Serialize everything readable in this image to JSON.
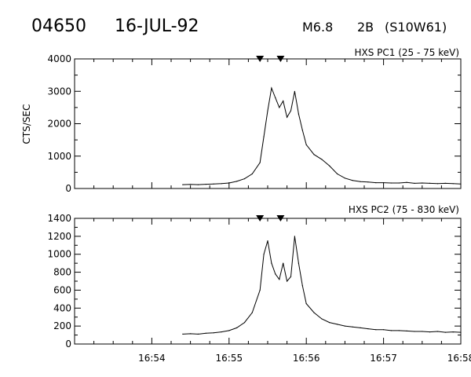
{
  "header": {
    "event_id": "04650",
    "date": "16-JUL-92",
    "flare_class": "M6.8",
    "optical_class": "2B",
    "location": "(S10W61)"
  },
  "colors": {
    "foreground": "#000000",
    "background": "#ffffff"
  },
  "chart_data": [
    {
      "type": "line",
      "title": "HXS PC1 (25 - 75 keV)",
      "ylabel": "CTS/SEC",
      "xlim": [
        "16:53:00",
        "16:58:00"
      ],
      "ylim": [
        0,
        4000
      ],
      "yticks": [
        0,
        1000,
        2000,
        3000,
        4000
      ],
      "ytick_labels": [
        "0",
        "1000",
        "2000",
        "3000",
        "4000"
      ],
      "x_start": "16:54:24",
      "x_end": "16:58:00",
      "markers": [
        "16:55:24",
        "16:55:40"
      ],
      "series": [
        {
          "x": [
            "16:54:24",
            "16:54:30",
            "16:54:36",
            "16:54:42",
            "16:54:48",
            "16:54:54",
            "16:55:00",
            "16:55:06",
            "16:55:12",
            "16:55:18",
            "16:55:24",
            "16:55:27",
            "16:55:30",
            "16:55:33",
            "16:55:36",
            "16:55:39",
            "16:55:42",
            "16:55:45",
            "16:55:48",
            "16:55:51",
            "16:55:54",
            "16:55:57",
            "16:56:00",
            "16:56:06",
            "16:56:12",
            "16:56:18",
            "16:56:24",
            "16:56:30",
            "16:56:36",
            "16:56:42",
            "16:56:48",
            "16:56:54",
            "16:57:00",
            "16:57:06",
            "16:57:12",
            "16:57:18",
            "16:57:24",
            "16:57:30",
            "16:57:36",
            "16:57:42",
            "16:57:48",
            "16:57:54",
            "16:58:00"
          ],
          "values": [
            120,
            125,
            120,
            130,
            140,
            150,
            170,
            220,
            300,
            450,
            800,
            1600,
            2400,
            3100,
            2800,
            2500,
            2700,
            2200,
            2400,
            3000,
            2300,
            1800,
            1350,
            1050,
            900,
            700,
            450,
            320,
            250,
            210,
            200,
            180,
            180,
            170,
            170,
            190,
            160,
            170,
            160,
            150,
            160,
            150,
            140
          ]
        }
      ]
    },
    {
      "type": "line",
      "title": "HXS PC2 (75 - 830 keV)",
      "ylabel": "",
      "xlim": [
        "16:53:00",
        "16:58:00"
      ],
      "ylim": [
        0,
        1400
      ],
      "yticks": [
        0,
        200,
        400,
        600,
        800,
        1000,
        1200,
        1400
      ],
      "ytick_labels": [
        "0",
        "200",
        "400",
        "600",
        "800",
        "1000",
        "1200",
        "1400"
      ],
      "xtick_labels": [
        "16:54",
        "16:55",
        "16:56",
        "16:57",
        "16:58"
      ],
      "markers": [
        "16:55:24",
        "16:55:40"
      ],
      "series": [
        {
          "x": [
            "16:54:24",
            "16:54:30",
            "16:54:36",
            "16:54:42",
            "16:54:48",
            "16:54:54",
            "16:55:00",
            "16:55:06",
            "16:55:12",
            "16:55:18",
            "16:55:24",
            "16:55:27",
            "16:55:30",
            "16:55:33",
            "16:55:36",
            "16:55:39",
            "16:55:42",
            "16:55:45",
            "16:55:48",
            "16:55:51",
            "16:55:54",
            "16:55:57",
            "16:56:00",
            "16:56:06",
            "16:56:12",
            "16:56:18",
            "16:56:24",
            "16:56:30",
            "16:56:36",
            "16:56:42",
            "16:56:48",
            "16:56:54",
            "16:57:00",
            "16:57:06",
            "16:57:12",
            "16:57:18",
            "16:57:24",
            "16:57:30",
            "16:57:36",
            "16:57:42",
            "16:57:48",
            "16:57:54",
            "16:58:00"
          ],
          "values": [
            110,
            115,
            110,
            120,
            125,
            135,
            150,
            180,
            240,
            350,
            600,
            1000,
            1150,
            900,
            780,
            720,
            900,
            700,
            750,
            1200,
            900,
            650,
            450,
            350,
            280,
            240,
            220,
            200,
            190,
            180,
            170,
            160,
            160,
            150,
            150,
            145,
            140,
            140,
            135,
            140,
            130,
            135,
            130
          ]
        }
      ]
    }
  ]
}
